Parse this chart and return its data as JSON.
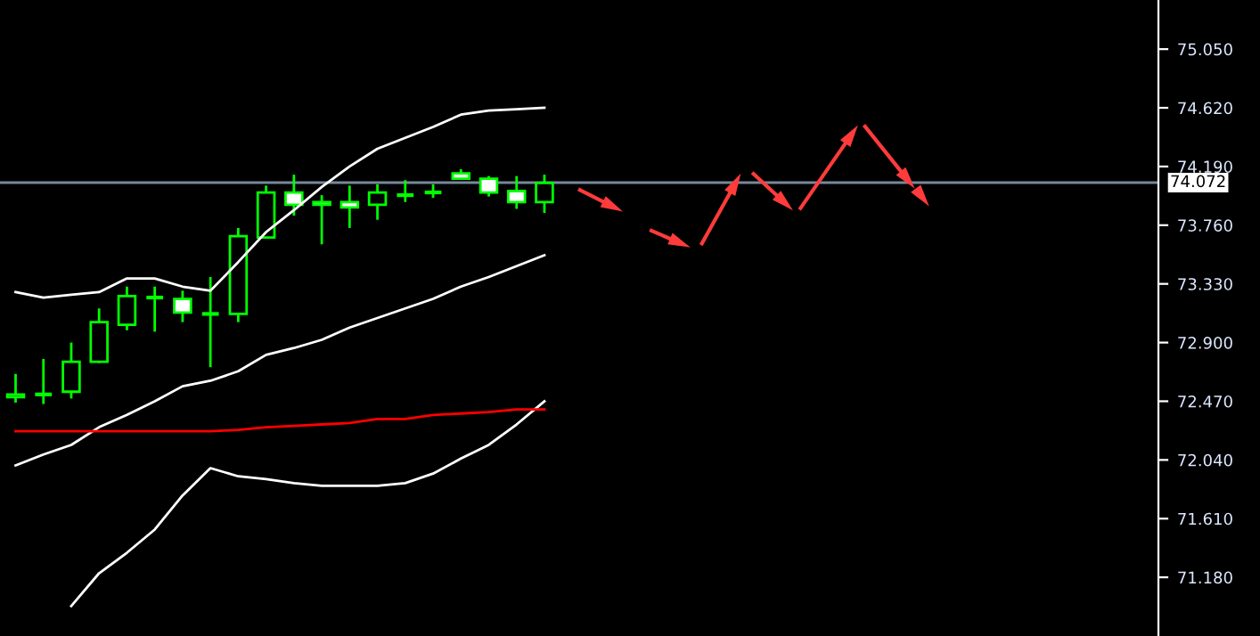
{
  "chart_data": {
    "type": "candlestick",
    "categories": [
      null,
      null,
      null,
      null,
      null,
      null,
      null,
      null,
      null,
      null,
      null,
      null,
      null,
      null,
      null,
      null,
      null,
      null,
      null,
      null,
      null,
      null,
      null,
      null,
      null,
      null,
      null,
      null,
      null,
      null,
      null,
      null,
      null,
      null,
      null,
      null,
      null,
      null,
      null,
      null,
      null,
      null
    ],
    "series": [
      {
        "type": "line",
        "color": "#ffffff",
        "values": [
          73.27,
          73.23,
          73.25,
          73.27,
          73.37,
          73.37,
          73.31,
          73.28,
          73.49,
          73.71,
          73.87,
          74.04,
          74.19,
          74.32,
          74.4,
          74.48,
          74.57,
          74.6,
          74.61,
          74.62,
          null,
          null,
          null,
          null,
          null,
          null,
          null,
          null,
          null,
          null,
          null,
          null,
          null,
          null,
          null,
          null,
          null,
          null,
          null,
          null,
          null,
          null
        ]
      },
      {
        "type": "line",
        "color": "#ffffff",
        "values": [
          72.0,
          72.08,
          72.15,
          72.28,
          72.37,
          72.47,
          72.58,
          72.62,
          72.69,
          72.81,
          72.86,
          72.92,
          73.01,
          73.08,
          73.15,
          73.22,
          73.31,
          73.38,
          73.46,
          73.54,
          null,
          null,
          null,
          null,
          null,
          null,
          null,
          null,
          null,
          null,
          null,
          null,
          null,
          null,
          null,
          null,
          null,
          null,
          null,
          null,
          null,
          null
        ]
      },
      {
        "type": "line",
        "color": "#ffffff",
        "values": [
          null,
          null,
          70.97,
          71.21,
          71.36,
          71.53,
          71.78,
          71.98,
          71.92,
          71.9,
          71.87,
          71.85,
          71.85,
          71.85,
          71.87,
          71.94,
          72.05,
          72.15,
          72.3,
          72.47,
          null,
          null,
          null,
          null,
          null,
          null,
          null,
          null,
          null,
          null,
          null,
          null,
          null,
          null,
          null,
          null,
          null,
          null,
          null,
          null,
          null,
          null
        ]
      },
      {
        "type": "line",
        "color": "#ff0000",
        "values": [
          72.25,
          72.25,
          72.25,
          72.25,
          72.25,
          72.25,
          72.25,
          72.25,
          72.26,
          72.28,
          72.29,
          72.3,
          72.31,
          72.34,
          72.34,
          72.37,
          72.38,
          72.39,
          72.41,
          72.41,
          null,
          null,
          null,
          null,
          null,
          null,
          null,
          null,
          null,
          null,
          null,
          null,
          null,
          null,
          null,
          null,
          null,
          null,
          null,
          null,
          null,
          null
        ]
      },
      {
        "type": "candlestick",
        "color": "#00ff00",
        "colors": [
          "#000000",
          null,
          "#000000",
          "#000000",
          "#000000",
          null,
          "#ffffff",
          null,
          "#000000",
          "#000000",
          "#ffffff",
          "#ffffff",
          "#ffffff",
          "#000000",
          null,
          null,
          "#ffffff",
          "#ffffff",
          "#ffffff",
          "#000000",
          null,
          null,
          null,
          null,
          null,
          null,
          null,
          null,
          null,
          null,
          null,
          null,
          null,
          null,
          null,
          null,
          null,
          null,
          null,
          null,
          null,
          null
        ],
        "ohlc": [
          [
            72.5,
            72.67,
            72.46,
            72.52
          ],
          [
            72.52,
            72.78,
            72.45,
            72.52
          ],
          [
            72.54,
            72.9,
            72.49,
            72.76
          ],
          [
            72.76,
            73.15,
            72.75,
            73.05
          ],
          [
            73.03,
            73.31,
            72.99,
            73.24
          ],
          [
            73.23,
            73.31,
            72.98,
            73.23
          ],
          [
            73.22,
            73.28,
            73.05,
            73.12
          ],
          [
            73.11,
            73.38,
            72.72,
            73.11
          ],
          [
            73.11,
            73.74,
            73.05,
            73.68
          ],
          [
            73.67,
            74.05,
            73.67,
            74.0
          ],
          [
            74.0,
            74.13,
            73.83,
            73.91
          ],
          [
            73.93,
            73.98,
            73.62,
            73.91
          ],
          [
            73.93,
            74.05,
            73.74,
            73.89
          ],
          [
            73.91,
            74.06,
            73.8,
            74.0
          ],
          [
            73.98,
            74.09,
            73.93,
            73.98
          ],
          [
            74.0,
            74.06,
            73.96,
            74.0
          ],
          [
            74.14,
            74.17,
            74.1,
            74.1
          ],
          [
            74.1,
            74.12,
            73.97,
            74.0
          ],
          [
            74.01,
            74.12,
            73.88,
            73.93
          ],
          [
            73.93,
            74.13,
            73.85,
            74.07
          ],
          null,
          null,
          null,
          null,
          null,
          null,
          null,
          null,
          null,
          null,
          null,
          null,
          null,
          null,
          null,
          null,
          null,
          null,
          null,
          null,
          null,
          null
        ]
      }
    ],
    "ylim": [
      70.75,
      75.41
    ],
    "yticks": [
      {
        "value": 71.18,
        "label": "71.180"
      },
      {
        "value": 71.61,
        "label": "71.610"
      },
      {
        "value": 72.04,
        "label": "72.040"
      },
      {
        "value": 72.47,
        "label": "72.470"
      },
      {
        "value": 72.9,
        "label": "72.900"
      },
      {
        "value": 73.33,
        "label": "73.330"
      },
      {
        "value": 73.76,
        "label": "73.760"
      },
      {
        "value": 74.19,
        "label": "74.190"
      },
      {
        "value": 74.62,
        "label": "74.620"
      },
      {
        "value": 75.05,
        "label": "75.050"
      }
    ],
    "ref_lines": [
      {
        "axis": "y",
        "value": 74.072,
        "label": "74.072",
        "color": "#778899"
      }
    ],
    "tick_labels": "y",
    "grid": false
  }
}
